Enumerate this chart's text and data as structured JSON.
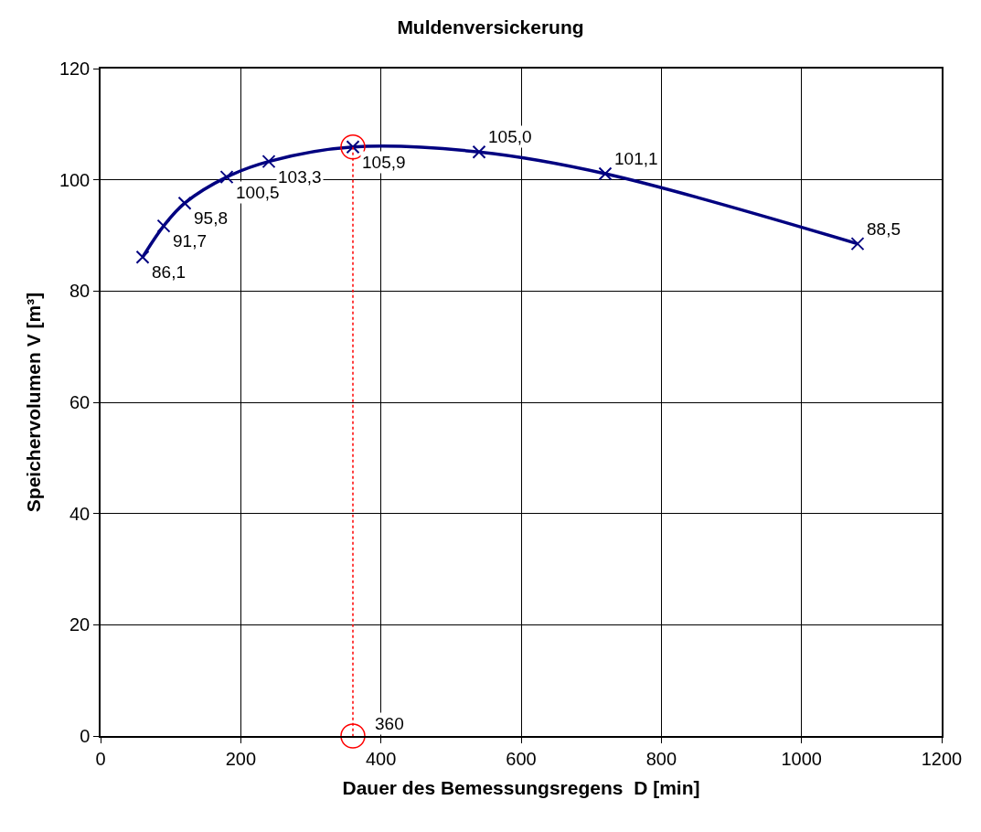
{
  "chart_data": {
    "type": "line",
    "title": "Muldenversickerung",
    "xlabel": "Dauer des Bemessungsregens  D [min]",
    "ylabel": "Speichervolumen V [m³]",
    "xlim": [
      0,
      1200
    ],
    "xticks": [
      0,
      200,
      400,
      600,
      800,
      1000,
      1200
    ],
    "ylim": [
      0,
      120
    ],
    "yticks": [
      0,
      20,
      40,
      60,
      80,
      100,
      120
    ],
    "grid": true,
    "series": [
      {
        "x": [
          60,
          90,
          120,
          180,
          240,
          360,
          540,
          720,
          1080
        ],
        "values": [
          86.1,
          91.7,
          95.8,
          100.5,
          103.3,
          105.9,
          105.0,
          101.1,
          88.5
        ],
        "color": "#000080",
        "marker": "cross",
        "line_style": "solid",
        "value_labels": [
          "86,1",
          "91,7",
          "95,8",
          "100,5",
          "103,3",
          "105,9",
          "105,0",
          "101,1",
          "88,5"
        ]
      },
      {
        "x": [
          360,
          360
        ],
        "values": [
          105.9,
          0
        ],
        "color": "#ff0000",
        "marker": "circle",
        "line_style": "dotted"
      }
    ],
    "annotations": [
      {
        "text": "360",
        "x": 360,
        "y": 0
      }
    ]
  }
}
